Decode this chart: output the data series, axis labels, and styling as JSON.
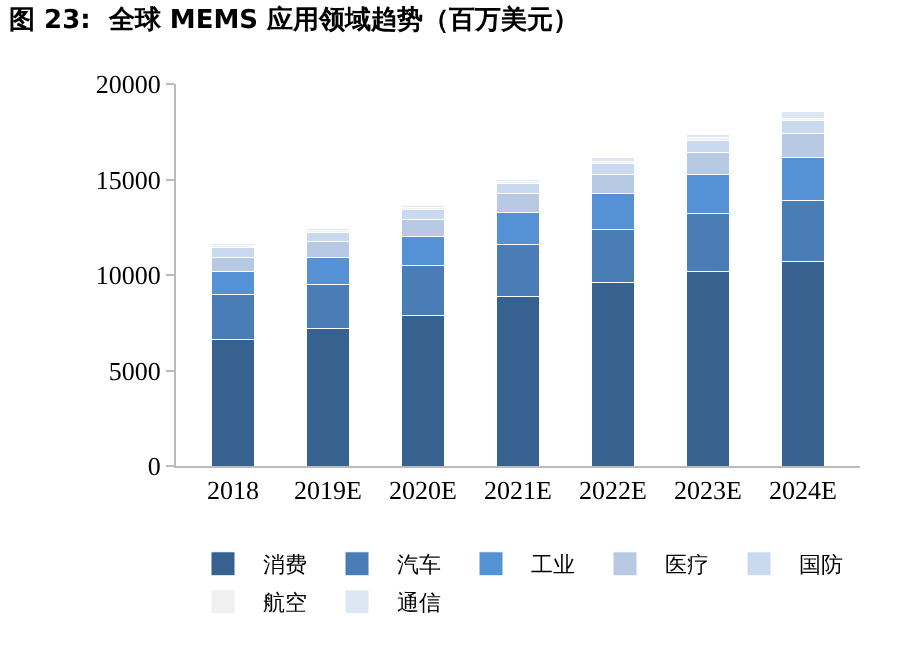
{
  "chart_data": {
    "type": "bar",
    "title": "图 23:  全球 MEMS 应用领域趋势（百万美元）",
    "stacked": true,
    "categories": [
      "2018",
      "2019E",
      "2020E",
      "2021E",
      "2022E",
      "2023E",
      "2024E"
    ],
    "series": [
      {
        "name": "消费",
        "color": "#37618f",
        "values": [
          6600,
          7200,
          7900,
          8900,
          9600,
          10200,
          10700
        ]
      },
      {
        "name": "汽车",
        "color": "#4a7db6",
        "values": [
          2400,
          2300,
          2600,
          2700,
          2800,
          3000,
          3200
        ]
      },
      {
        "name": "工业",
        "color": "#5591d5",
        "values": [
          1200,
          1400,
          1500,
          1650,
          1850,
          2050,
          2250
        ]
      },
      {
        "name": "医疗",
        "color": "#b8cae3",
        "values": [
          700,
          850,
          900,
          1000,
          1000,
          1150,
          1250
        ]
      },
      {
        "name": "国防",
        "color": "#c8d9f0",
        "values": [
          550,
          500,
          550,
          550,
          600,
          650,
          700
        ]
      },
      {
        "name": "航空",
        "color": "#f0f0f0",
        "values": [
          100,
          100,
          100,
          100,
          100,
          150,
          100
        ]
      },
      {
        "name": "通信",
        "color": "#dde7f3",
        "values": [
          100,
          100,
          100,
          100,
          200,
          150,
          350
        ]
      }
    ],
    "ylim": [
      0,
      20000
    ],
    "yticks": [
      0,
      5000,
      10000,
      15000,
      20000
    ],
    "grid": false,
    "legend": "bottom"
  }
}
